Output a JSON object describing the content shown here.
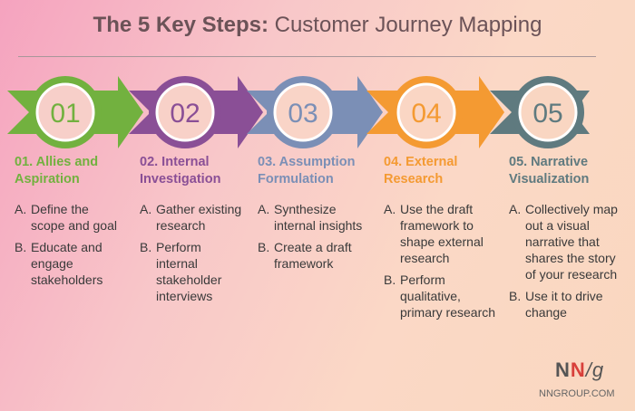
{
  "title": {
    "bold": "The 5 Key Steps:",
    "rest": "Customer Journey Mapping"
  },
  "steps": [
    {
      "number": "01",
      "heading": "01. Allies and Aspiration",
      "color": "#72b13f",
      "items": [
        {
          "letter": "A.",
          "text": "Define the scope and goal"
        },
        {
          "letter": "B.",
          "text": "Educate and engage stakeholders"
        }
      ]
    },
    {
      "number": "02",
      "heading": "02. Internal Investigation",
      "color": "#8a4f96",
      "items": [
        {
          "letter": "A.",
          "text": "Gather existing research"
        },
        {
          "letter": "B.",
          "text": "Perform internal stakeholder interviews"
        }
      ]
    },
    {
      "number": "03",
      "heading": "03. Assumption Formulation",
      "color": "#7b8fb6",
      "items": [
        {
          "letter": "A.",
          "text": "Synthesize internal insights"
        },
        {
          "letter": "B.",
          "text": "Create a draft framework"
        }
      ]
    },
    {
      "number": "04",
      "heading": "04. External Research",
      "color": "#f49a32",
      "items": [
        {
          "letter": "A.",
          "text": "Use the draft framework to shape external research"
        },
        {
          "letter": "B.",
          "text": "Perform qualitative, primary research"
        }
      ]
    },
    {
      "number": "05",
      "heading": "05. Narrative Visualization",
      "color": "#5f7a7f",
      "items": [
        {
          "letter": "A.",
          "text": "Collectively map out a visual narrative that shares the story of your research"
        },
        {
          "letter": "B.",
          "text": "Use it to drive change"
        }
      ]
    }
  ],
  "logo": {
    "n1": "N",
    "n2": "N",
    "slash_g": "/g"
  },
  "site": "NNGROUP.COM"
}
